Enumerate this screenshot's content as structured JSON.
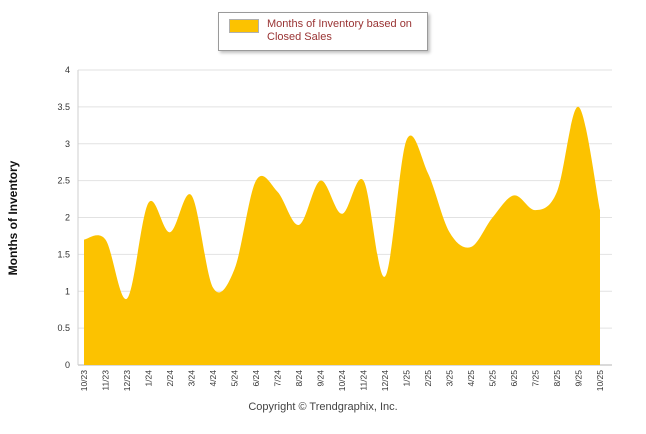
{
  "legend": {
    "label": "Months of Inventory based on Closed Sales",
    "swatch_color": "#FCC200"
  },
  "y_axis": {
    "title": "Months of Inventory"
  },
  "footer": {
    "copyright": "Copyright © Trendgraphix, Inc."
  },
  "chart_data": {
    "type": "area",
    "title": "Months of Inventory based on Closed Sales",
    "categories": [
      "10/23",
      "11/23",
      "12/23",
      "1/24",
      "2/24",
      "3/24",
      "4/24",
      "5/24",
      "6/24",
      "7/24",
      "8/24",
      "9/24",
      "10/24",
      "11/24",
      "12/24",
      "1/25",
      "2/25",
      "3/25",
      "4/25",
      "5/25",
      "6/25",
      "7/25",
      "8/25",
      "9/25",
      "10/25"
    ],
    "values": [
      1.7,
      1.7,
      0.9,
      2.2,
      1.8,
      2.3,
      1.05,
      1.3,
      2.5,
      2.35,
      1.9,
      2.5,
      2.05,
      2.5,
      1.2,
      3.05,
      2.6,
      1.8,
      1.6,
      2.0,
      2.3,
      2.1,
      2.35,
      3.5,
      2.1
    ],
    "ylabel": "Months of Inventory",
    "xlabel": "",
    "ylim": [
      0,
      4
    ],
    "ytick_step": 0.5,
    "grid": true,
    "fill_color": "#FCC200",
    "legend_position": "top"
  }
}
